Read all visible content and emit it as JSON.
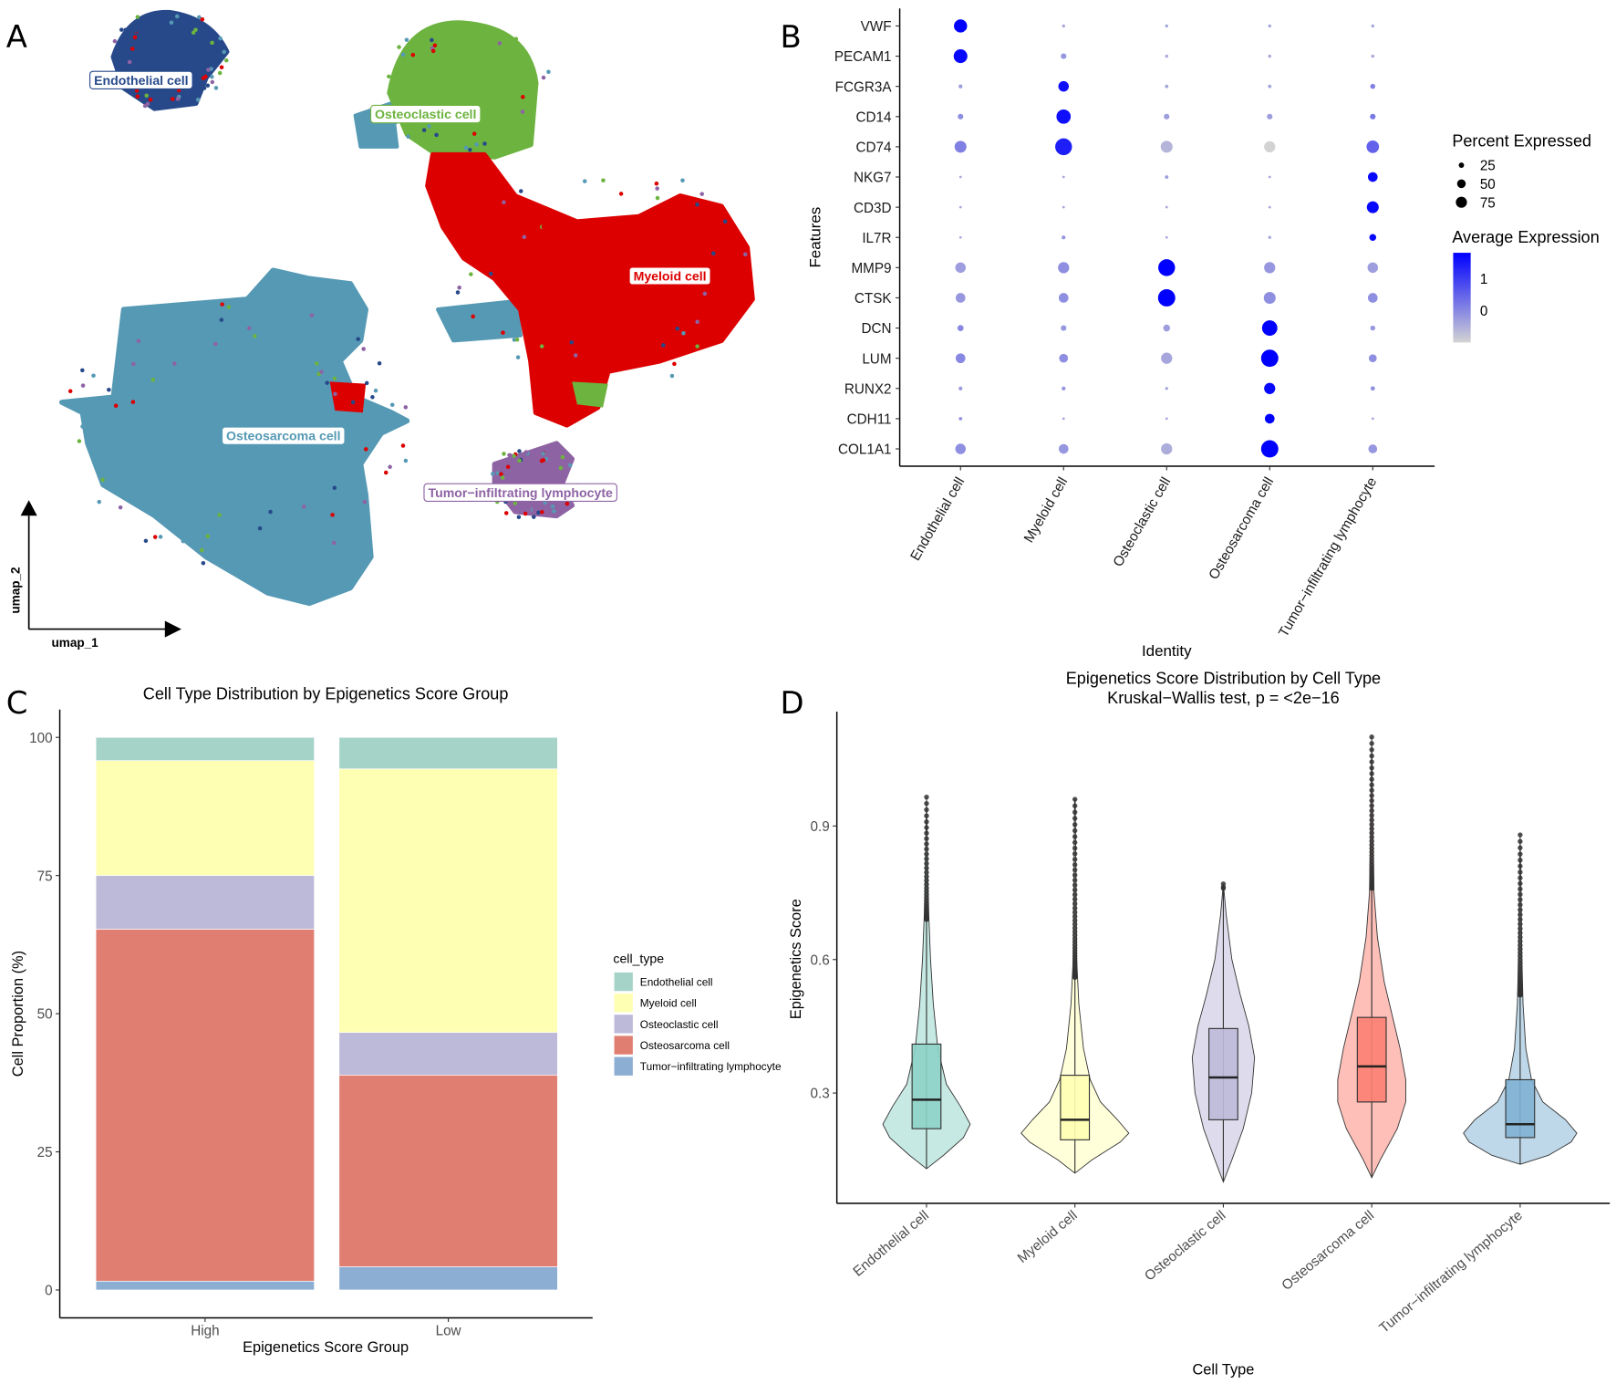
{
  "panels": [
    "A",
    "B",
    "C",
    "D"
  ],
  "chart_data": [
    {
      "type": "scatter",
      "panel": "A",
      "xlabel": "umap_1",
      "ylabel": "umap_2",
      "clusters": [
        {
          "name": "Endothelial cell",
          "color": "#27498a"
        },
        {
          "name": "Osteoclastic cell",
          "color": "#6db33f"
        },
        {
          "name": "Myeloid cell",
          "color": "#dd0000"
        },
        {
          "name": "Osteosarcoma cell",
          "color": "#5599b4"
        },
        {
          "name": "Tumor−infiltrating lymphocyte",
          "color": "#8e63a4"
        }
      ]
    },
    {
      "type": "dot",
      "panel": "B",
      "xlabel": "Identity",
      "ylabel": "Features",
      "features": [
        "VWF",
        "PECAM1",
        "FCGR3A",
        "CD14",
        "CD74",
        "NKG7",
        "CD3D",
        "IL7R",
        "MMP9",
        "CTSK",
        "DCN",
        "LUM",
        "RUNX2",
        "CDH11",
        "COL1A1"
      ],
      "identities": [
        "Endothelial cell",
        "Myeloid cell",
        "Osteoclastic cell",
        "Osteosarcoma cell",
        "Tumor−infiltrating lymphocyte"
      ],
      "pct_expressed": [
        [
          55,
          3,
          3,
          3,
          3
        ],
        [
          60,
          10,
          3,
          3,
          3
        ],
        [
          5,
          35,
          4,
          4,
          8
        ],
        [
          10,
          65,
          10,
          10,
          10
        ],
        [
          45,
          90,
          45,
          40,
          50
        ],
        [
          2,
          2,
          4,
          2,
          30
        ],
        [
          2,
          2,
          2,
          2,
          45
        ],
        [
          2,
          5,
          2,
          3,
          15
        ],
        [
          35,
          40,
          90,
          40,
          35
        ],
        [
          30,
          30,
          95,
          45,
          30
        ],
        [
          12,
          10,
          15,
          75,
          8
        ],
        [
          30,
          25,
          40,
          95,
          20
        ],
        [
          5,
          5,
          3,
          40,
          6
        ],
        [
          4,
          2,
          2,
          30,
          2
        ],
        [
          35,
          30,
          40,
          95,
          25
        ]
      ],
      "avg_expression": [
        [
          1.8,
          -0.4,
          -0.4,
          -0.4,
          -0.4
        ],
        [
          1.7,
          -0.2,
          -0.4,
          -0.4,
          -0.4
        ],
        [
          -0.3,
          1.6,
          -0.4,
          -0.4,
          0.1
        ],
        [
          -0.1,
          1.6,
          -0.3,
          -0.3,
          0.2
        ],
        [
          0.1,
          1.4,
          -0.6,
          -1.0,
          0.5
        ],
        [
          -0.4,
          -0.4,
          -0.3,
          -0.4,
          1.7
        ],
        [
          -0.4,
          -0.4,
          -0.4,
          -0.4,
          1.7
        ],
        [
          -0.4,
          -0.2,
          -0.4,
          -0.4,
          1.7
        ],
        [
          -0.3,
          -0.1,
          1.8,
          -0.2,
          -0.3
        ],
        [
          -0.2,
          -0.1,
          1.8,
          -0.1,
          -0.1
        ],
        [
          0.0,
          -0.2,
          -0.3,
          1.8,
          -0.2
        ],
        [
          0.0,
          -0.1,
          -0.4,
          1.8,
          -0.1
        ],
        [
          -0.3,
          -0.2,
          -0.4,
          1.7,
          -0.1
        ],
        [
          -0.2,
          -0.4,
          -0.4,
          1.8,
          -0.4
        ],
        [
          -0.1,
          -0.2,
          -0.5,
          1.8,
          -0.2
        ]
      ],
      "size_legend": {
        "title": "Percent Expressed",
        "values": [
          "25",
          "50",
          "75"
        ]
      },
      "color_legend": {
        "title": "Average Expression",
        "ticks": [
          "1",
          "0"
        ],
        "range": [
          -1,
          1.8
        ],
        "low": "#d3d3d3",
        "high": "#0000ff"
      }
    },
    {
      "type": "bar",
      "stacked": true,
      "panel": "C",
      "title": "Cell Type Distribution by Epigenetics Score Group",
      "xlabel": "Epigenetics Score Group",
      "ylabel": "Cell Proportion (%)",
      "categories": [
        "High",
        "Low"
      ],
      "yticks": [
        "0",
        "25",
        "50",
        "75",
        "100"
      ],
      "ylim": [
        0,
        100
      ],
      "legend_title": "cell_type",
      "legend": "right",
      "series": [
        {
          "name": "Endothelial cell",
          "color": "#a6d3c8",
          "values": [
            4.2,
            5.7
          ]
        },
        {
          "name": "Myeloid cell",
          "color": "#ffffb3",
          "values": [
            20.8,
            47.7
          ]
        },
        {
          "name": "Osteoclastic cell",
          "color": "#bdbad9",
          "values": [
            9.7,
            7.7
          ]
        },
        {
          "name": "Osteosarcoma cell",
          "color": "#e07e72",
          "values": [
            63.7,
            34.7
          ]
        },
        {
          "name": "Tumor−infiltrating lymphocyte",
          "color": "#8daed3",
          "values": [
            1.6,
            4.2
          ]
        }
      ]
    },
    {
      "type": "violin",
      "panel": "D",
      "title": "Epigenetics Score Distribution by Cell Type",
      "subtitle": "Kruskal−Wallis test, p = <2e−16",
      "xlabel": "Cell Type",
      "ylabel": "Epigenetics Score",
      "yticks": [
        "0.3",
        "0.6",
        "0.9"
      ],
      "ylim": [
        0.08,
        1.12
      ],
      "series": [
        {
          "name": "Endothelial cell",
          "color": "#8dd3c7",
          "min": 0.13,
          "q1": 0.22,
          "median": 0.285,
          "q3": 0.41,
          "whisker_high": 0.69,
          "max": 0.965,
          "density": [
            [
              0.13,
              0
            ],
            [
              0.16,
              0.3
            ],
            [
              0.2,
              0.65
            ],
            [
              0.23,
              0.77
            ],
            [
              0.27,
              0.6
            ],
            [
              0.32,
              0.35
            ],
            [
              0.4,
              0.2
            ],
            [
              0.5,
              0.12
            ],
            [
              0.6,
              0.07
            ],
            [
              0.7,
              0.04
            ],
            [
              0.8,
              0.02
            ],
            [
              0.965,
              0
            ]
          ]
        },
        {
          "name": "Myeloid cell",
          "color": "#ffffb3",
          "min": 0.12,
          "q1": 0.195,
          "median": 0.24,
          "q3": 0.34,
          "whisker_high": 0.56,
          "max": 0.96,
          "density": [
            [
              0.12,
              0
            ],
            [
              0.15,
              0.3
            ],
            [
              0.19,
              0.8
            ],
            [
              0.21,
              0.95
            ],
            [
              0.24,
              0.75
            ],
            [
              0.28,
              0.45
            ],
            [
              0.33,
              0.27
            ],
            [
              0.4,
              0.15
            ],
            [
              0.5,
              0.07
            ],
            [
              0.6,
              0.03
            ],
            [
              0.96,
              0.005
            ]
          ]
        },
        {
          "name": "Osteoclastic cell",
          "color": "#bebada",
          "min": 0.1,
          "q1": 0.24,
          "median": 0.335,
          "q3": 0.445,
          "whisker_high": 0.76,
          "max": 0.77,
          "density": [
            [
              0.1,
              0
            ],
            [
              0.15,
              0.15
            ],
            [
              0.22,
              0.35
            ],
            [
              0.3,
              0.5
            ],
            [
              0.38,
              0.55
            ],
            [
              0.45,
              0.45
            ],
            [
              0.52,
              0.3
            ],
            [
              0.6,
              0.15
            ],
            [
              0.7,
              0.05
            ],
            [
              0.77,
              0
            ]
          ]
        },
        {
          "name": "Osteosarcoma cell",
          "color": "#fb8072",
          "min": 0.11,
          "q1": 0.28,
          "median": 0.36,
          "q3": 0.47,
          "whisker_high": 0.76,
          "max": 1.1,
          "density": [
            [
              0.11,
              0
            ],
            [
              0.15,
              0.15
            ],
            [
              0.22,
              0.45
            ],
            [
              0.28,
              0.6
            ],
            [
              0.33,
              0.6
            ],
            [
              0.4,
              0.5
            ],
            [
              0.48,
              0.35
            ],
            [
              0.55,
              0.22
            ],
            [
              0.65,
              0.1
            ],
            [
              0.75,
              0.04
            ],
            [
              0.9,
              0.02
            ],
            [
              1.1,
              0
            ]
          ]
        },
        {
          "name": "Tumor−infiltrating lymphocyte",
          "color": "#80b1d3",
          "min": 0.14,
          "q1": 0.2,
          "median": 0.23,
          "q3": 0.33,
          "whisker_high": 0.52,
          "max": 0.88,
          "density": [
            [
              0.14,
              0
            ],
            [
              0.16,
              0.5
            ],
            [
              0.19,
              0.9
            ],
            [
              0.21,
              1.0
            ],
            [
              0.24,
              0.8
            ],
            [
              0.28,
              0.4
            ],
            [
              0.33,
              0.2
            ],
            [
              0.4,
              0.1
            ],
            [
              0.5,
              0.05
            ],
            [
              0.6,
              0.03
            ],
            [
              0.88,
              0
            ]
          ]
        }
      ]
    }
  ]
}
